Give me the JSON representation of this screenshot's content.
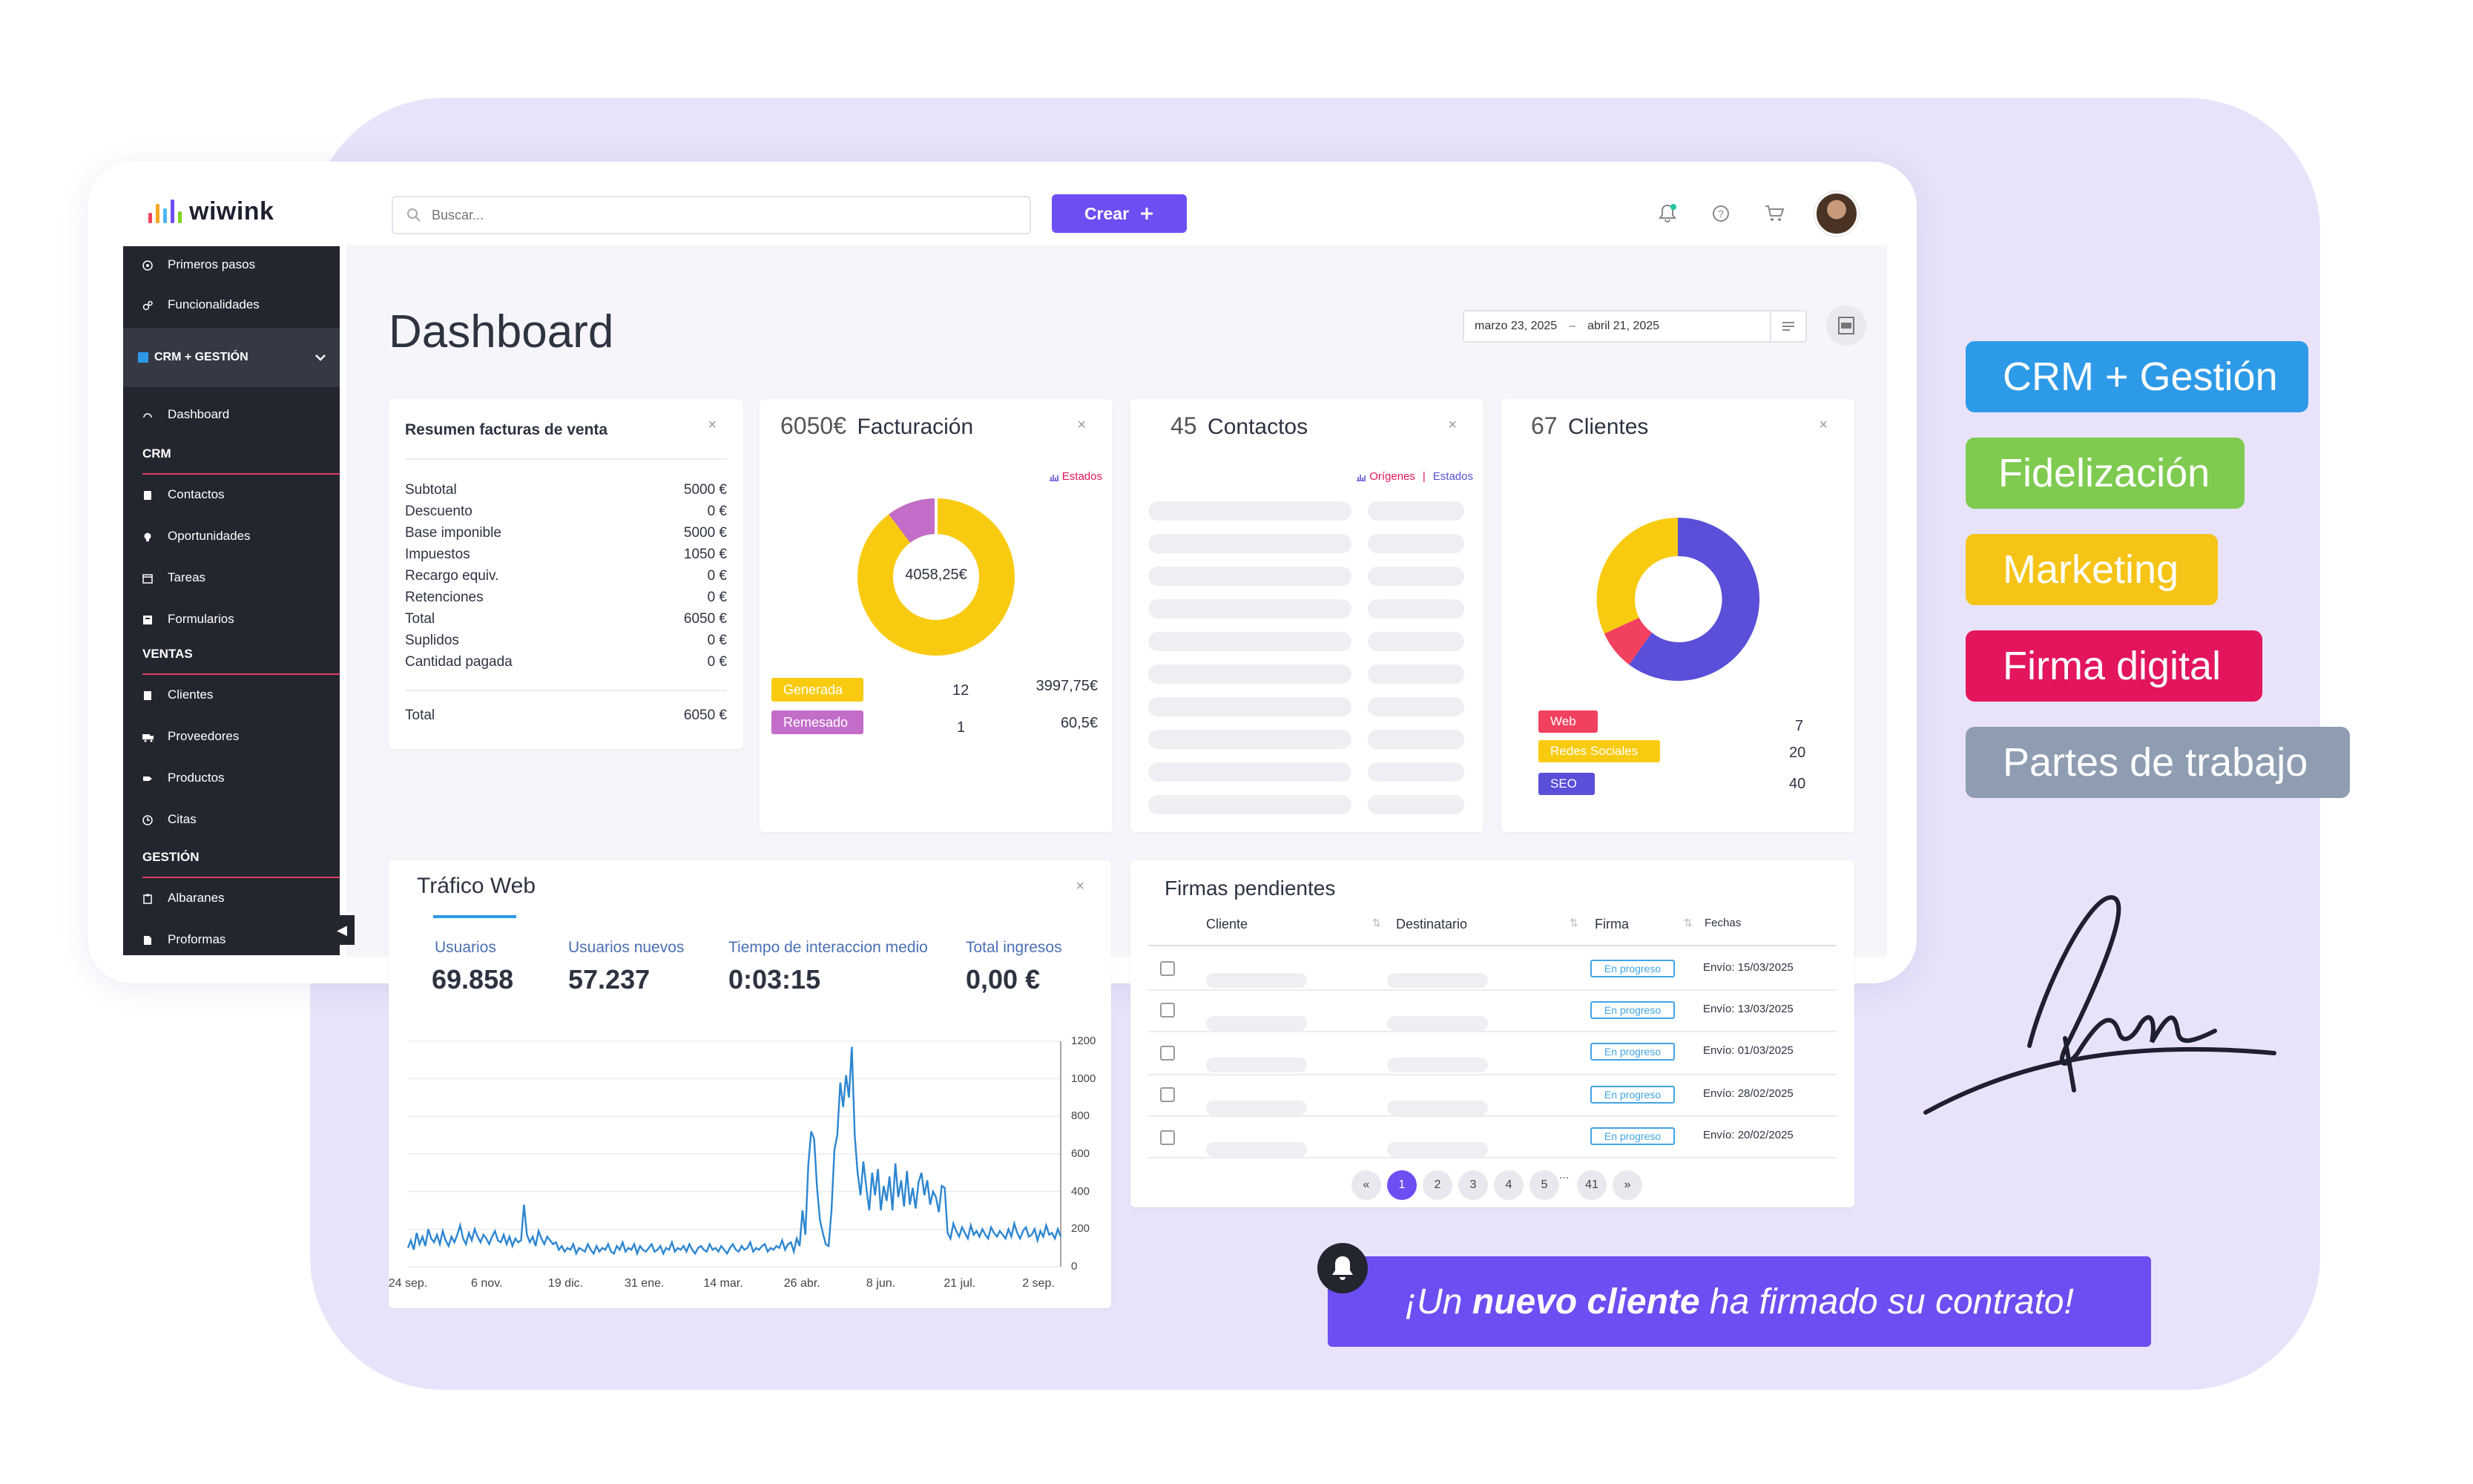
{
  "brand": {
    "name": "wiwink",
    "accent": "#6c4ef2",
    "bar_colors": [
      "#f1415e",
      "#f5a623",
      "#4cb7f0",
      "#6c4ef2",
      "#7ed321"
    ]
  },
  "header": {
    "search_placeholder": "Buscar...",
    "create_label": "Crear",
    "icons": [
      "bell-icon",
      "help-icon",
      "cart-icon"
    ]
  },
  "sidebar": {
    "items_top": [
      {
        "label": "Primeros pasos",
        "icon": "compass-icon"
      },
      {
        "label": "Funcionalidades",
        "icon": "gears-icon"
      }
    ],
    "group_label": "CRM + GESTIÓN",
    "dashboard_label": "Dashboard",
    "crm": {
      "title": "CRM",
      "items": [
        {
          "label": "Contactos",
          "icon": "address-book-icon"
        },
        {
          "label": "Oportunidades",
          "icon": "lightbulb-icon"
        },
        {
          "label": "Tareas",
          "icon": "calendar-icon"
        },
        {
          "label": "Formularios",
          "icon": "form-icon"
        }
      ]
    },
    "ventas": {
      "title": "VENTAS",
      "items": [
        {
          "label": "Clientes",
          "icon": "building-icon"
        },
        {
          "label": "Proveedores",
          "icon": "truck-icon"
        },
        {
          "label": "Productos",
          "icon": "tag-icon"
        },
        {
          "label": "Citas",
          "icon": "clock-icon"
        }
      ]
    },
    "gestion": {
      "title": "GESTIÓN",
      "items": [
        {
          "label": "Albaranes",
          "icon": "clipboard-icon"
        },
        {
          "label": "Proformas",
          "icon": "file-icon"
        }
      ]
    }
  },
  "page": {
    "title": "Dashboard",
    "date_from": "marzo 23, 2025",
    "date_sep": "–",
    "date_to": "abril 21, 2025"
  },
  "resumen": {
    "title": "Resumen facturas de venta",
    "rows": [
      {
        "label": "Subtotal",
        "value": "5000 €"
      },
      {
        "label": "Descuento",
        "value": "0 €"
      },
      {
        "label": "Base imponible",
        "value": "5000 €"
      },
      {
        "label": "Impuestos",
        "value": "1050 €"
      },
      {
        "label": "Recargo equiv.",
        "value": "0 €"
      },
      {
        "label": "Retenciones",
        "value": "0 €"
      },
      {
        "label": "Total",
        "value": "6050 €"
      },
      {
        "label": "Suplidos",
        "value": "0 €"
      },
      {
        "label": "Cantidad pagada",
        "value": "0 €"
      }
    ],
    "total_label": "Total",
    "total_value": "6050 €"
  },
  "facturacion": {
    "amount": "6050€",
    "title": "Facturación",
    "link": "Estados",
    "center_label": "4058,25€",
    "legend": [
      {
        "label": "Generada",
        "count": "12",
        "amount": "3997,75€",
        "color": "#f9cb10"
      },
      {
        "label": "Remesado",
        "count": "1",
        "amount": "60,5€",
        "color": "#c36dc9"
      }
    ]
  },
  "contactos": {
    "count": "45",
    "title": "Contactos",
    "link1": "Orígenes",
    "link_sep": "|",
    "link2": "Estados"
  },
  "clientes": {
    "count": "67",
    "title": "Clientes",
    "legend": [
      {
        "label": "Web",
        "value": "7",
        "color": "#f1415e"
      },
      {
        "label": "Redes Sociales",
        "value": "20",
        "color": "#f9cb10"
      },
      {
        "label": "SEO",
        "value": "40",
        "color": "#5a4fd8"
      }
    ]
  },
  "trafico": {
    "title": "Tráfico Web",
    "stats": [
      {
        "label": "Usuarios",
        "value": "69.858"
      },
      {
        "label": "Usuarios nuevos",
        "value": "57.237"
      },
      {
        "label": "Tiempo de interaccion medio",
        "value": "0:03:15"
      },
      {
        "label": "Total ingresos",
        "value": "0,00 €"
      }
    ]
  },
  "chart_data": {
    "type": "line",
    "title": "",
    "x_ticks": [
      "24 sep.",
      "6 nov.",
      "19 dic.",
      "31 ene.",
      "14 mar.",
      "26 abr.",
      "8 jun.",
      "21 jul.",
      "2 sep."
    ],
    "y_ticks": [
      "0",
      "200",
      "400",
      "600",
      "800",
      "1000",
      "1200"
    ],
    "ylim": [
      0,
      1200
    ],
    "series": [
      {
        "values": [
          100,
          140,
          90,
          180,
          120,
          160,
          110,
          200,
          150,
          130,
          170,
          120,
          190,
          140,
          110,
          160,
          130,
          170,
          220,
          150,
          120,
          180,
          140,
          200,
          160,
          130,
          170,
          150,
          120,
          160,
          190,
          140,
          130,
          170,
          120,
          160,
          110,
          150,
          130,
          140,
          330,
          170,
          130,
          160,
          110,
          190,
          150,
          120,
          160,
          140,
          120,
          130,
          90,
          110,
          80,
          100,
          90,
          120,
          70,
          100,
          90,
          80,
          120,
          90,
          70,
          110,
          80,
          100,
          90,
          120,
          80,
          70,
          110,
          90,
          130,
          80,
          100,
          90,
          120,
          70,
          110,
          90,
          80,
          100,
          120,
          80,
          90,
          110,
          70,
          100,
          90,
          130,
          80,
          100,
          90,
          110,
          80,
          120,
          90,
          70,
          100,
          110,
          90,
          80,
          120,
          90,
          100,
          80,
          110,
          90,
          70,
          100,
          120,
          90,
          80,
          110,
          90,
          100,
          130,
          80,
          100,
          90,
          110,
          120,
          80,
          100,
          90,
          110,
          100,
          140,
          90,
          120,
          130,
          80,
          150,
          110,
          300,
          170,
          540,
          720,
          680,
          420,
          250,
          180,
          120,
          110,
          300,
          620,
          700,
          980,
          850,
          1020,
          900,
          1170,
          700,
          500,
          380,
          560,
          420,
          300,
          500,
          380,
          520,
          300,
          430,
          350,
          480,
          300,
          550,
          370,
          460,
          320,
          510,
          330,
          420,
          310,
          450,
          500,
          380,
          460,
          330,
          400,
          370,
          290,
          430,
          420,
          180,
          150,
          230,
          190,
          160,
          210,
          180,
          150,
          220,
          170,
          190,
          160,
          200,
          170,
          150,
          210,
          180,
          160,
          190,
          170,
          150,
          200,
          160,
          230,
          180,
          150,
          190,
          210,
          160,
          170,
          200,
          140,
          190,
          160,
          220,
          170,
          180,
          150,
          200,
          160
        ]
      }
    ]
  },
  "firmas": {
    "title": "Firmas pendientes",
    "columns": [
      "Cliente",
      "Destinatario",
      "Firma",
      "Fechas"
    ],
    "rows": [
      {
        "status": "En progreso",
        "date": "Envío: 15/03/2025"
      },
      {
        "status": "En progreso",
        "date": "Envío: 13/03/2025"
      },
      {
        "status": "En progreso",
        "date": "Envío: 01/03/2025"
      },
      {
        "status": "En progreso",
        "date": "Envío: 28/02/2025"
      },
      {
        "status": "En progreso",
        "date": "Envío: 20/02/2025"
      }
    ],
    "pagination": [
      "«",
      "1",
      "2",
      "3",
      "4",
      "5",
      "...",
      "41",
      "»"
    ]
  },
  "tags": [
    {
      "label": "CRM + Gestión",
      "color": "#2d9ae8"
    },
    {
      "label": "Fidelización",
      "color": "#7ecb4f"
    },
    {
      "label": "Marketing",
      "color": "#f6c416"
    },
    {
      "label": "Firma digital",
      "color": "#e3155c"
    },
    {
      "label": "Partes de trabajo",
      "color": "#8e9db1"
    }
  ],
  "notification": {
    "prefix": "¡Un ",
    "bold": "nuevo cliente",
    "suffix": " ha firmado su contrato!"
  }
}
